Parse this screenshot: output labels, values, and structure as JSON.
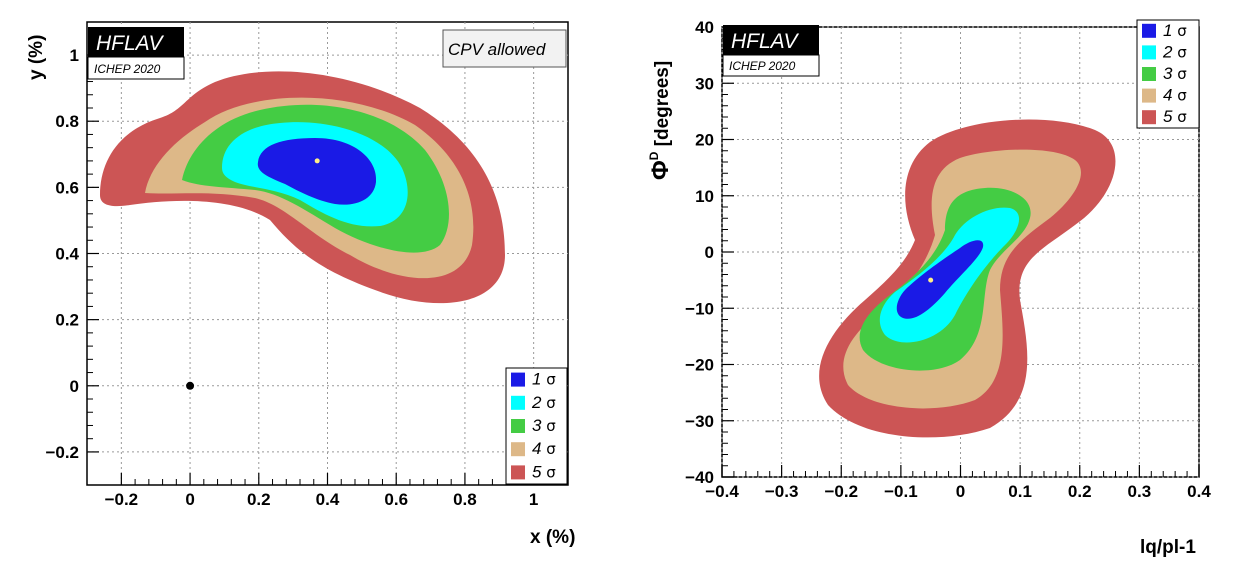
{
  "colors": {
    "sigma1": "#1a1ae6",
    "sigma2": "#00ffff",
    "sigma3": "#44cc44",
    "sigma4": "#ddb888",
    "sigma5": "#cc5555"
  },
  "chart_data": [
    {
      "type": "contour",
      "badge": "HFLAV",
      "badge_sub": "ICHEP 2020",
      "annotation": "CPV allowed",
      "xlabel": "x (%)",
      "ylabel": "y (%)",
      "xlim": [
        -0.3,
        1.1
      ],
      "ylim": [
        -0.3,
        1.1
      ],
      "xticks": [
        "−0.2",
        "0",
        "0.2",
        "0.4",
        "0.6",
        "0.8",
        "1"
      ],
      "yticks": [
        "−0.2",
        "0",
        "0.2",
        "0.4",
        "0.6",
        "0.8",
        "1"
      ],
      "grid": true,
      "legend_position": "bottom-right",
      "legend": [
        "1 σ",
        "2 σ",
        "3 σ",
        "4 σ",
        "5 σ"
      ],
      "best_fit": {
        "x": 0.37,
        "y": 0.68
      },
      "reference_point": {
        "x": 0.0,
        "y": 0.0
      }
    },
    {
      "type": "contour",
      "badge": "HFLAV",
      "badge_sub": "ICHEP 2020",
      "xlabel": "lq/pl-1",
      "ylabel": "ΦD [degrees]",
      "xlim": [
        -0.4,
        0.4
      ],
      "ylim": [
        -40,
        40
      ],
      "xticks": [
        "−0.4",
        "−0.3",
        "−0.2",
        "−0.1",
        "0",
        "0.1",
        "0.2",
        "0.3",
        "0.4"
      ],
      "yticks": [
        "−40",
        "−30",
        "−20",
        "−10",
        "0",
        "10",
        "20",
        "30",
        "40"
      ],
      "grid": true,
      "legend_position": "top-right",
      "legend": [
        "1 σ",
        "2 σ",
        "3 σ",
        "4 σ",
        "5 σ"
      ],
      "best_fit": {
        "x": -0.05,
        "y": -5
      }
    }
  ]
}
